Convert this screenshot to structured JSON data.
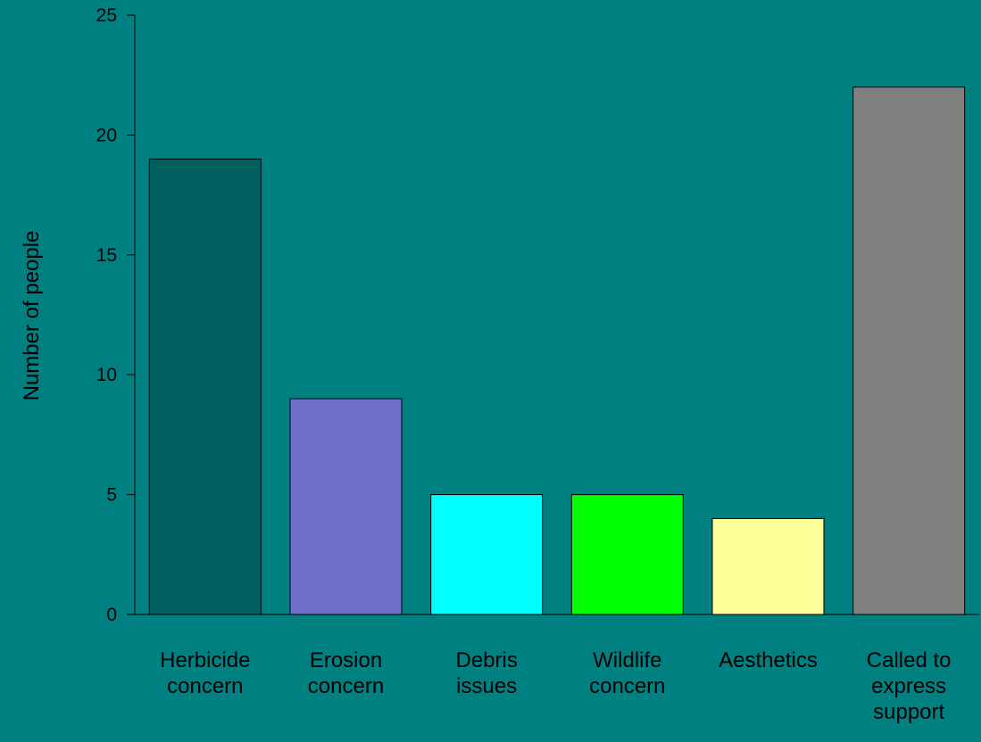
{
  "chart_data": {
    "type": "bar",
    "title": "",
    "xlabel": "",
    "ylabel": "Number of people",
    "ylim": [
      0,
      25
    ],
    "yticks": [
      0,
      5,
      10,
      15,
      20,
      25
    ],
    "grid": false,
    "legend": "none",
    "categories": [
      [
        "Herbicide",
        "concern"
      ],
      [
        "Erosion",
        "concern"
      ],
      [
        "Debris",
        "issues"
      ],
      [
        "Wildlife",
        "concern"
      ],
      [
        "Aesthetics"
      ],
      [
        "Called to",
        "express",
        "support"
      ]
    ],
    "values": [
      19,
      9,
      5,
      5,
      4,
      22
    ],
    "colors": [
      "#006060",
      "#7070C8",
      "#00FFFF",
      "#00FF00",
      "#FFFF99",
      "#808080"
    ]
  },
  "background_color": "#008080"
}
